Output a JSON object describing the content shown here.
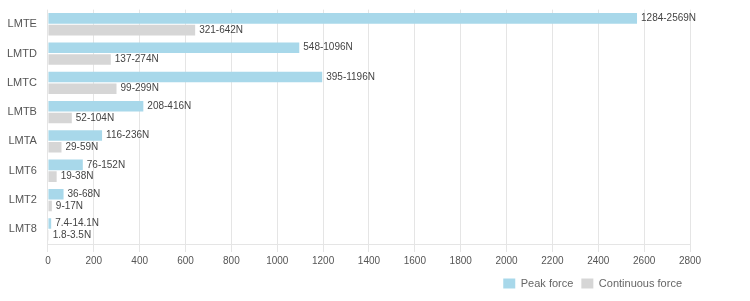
{
  "chart_data": {
    "type": "bar",
    "orientation": "horizontal",
    "categories": [
      "LMT8",
      "LMT2",
      "LMT6",
      "LMTA",
      "LMTB",
      "LMTC",
      "LMTD",
      "LMTE"
    ],
    "series": [
      {
        "name": "Peak force",
        "color": "#a8d8ea",
        "values": [
          14.1,
          68,
          152,
          236,
          416,
          1196,
          1096,
          2569
        ],
        "value_labels": [
          "7.4-14.1N",
          "36-68N",
          "76-152N",
          "116-236N",
          "208-416N",
          "395-1196N",
          "548-1096N",
          "1284-2569N"
        ]
      },
      {
        "name": "Continuous force",
        "color": "#d6d6d6",
        "values": [
          3.5,
          17,
          38,
          59,
          104,
          299,
          274,
          642
        ],
        "value_labels": [
          "1.8-3.5N",
          "9-17N",
          "19-38N",
          "29-59N",
          "52-104N",
          "99-299N",
          "137-274N",
          "321-642N"
        ]
      }
    ],
    "xlim": [
      0,
      2800
    ],
    "xticks": [
      0,
      200,
      400,
      600,
      800,
      1000,
      1200,
      1400,
      1600,
      1800,
      2000,
      2200,
      2400,
      2600,
      2800
    ],
    "grid": "x",
    "legend": "lower right",
    "data_labels": true
  }
}
